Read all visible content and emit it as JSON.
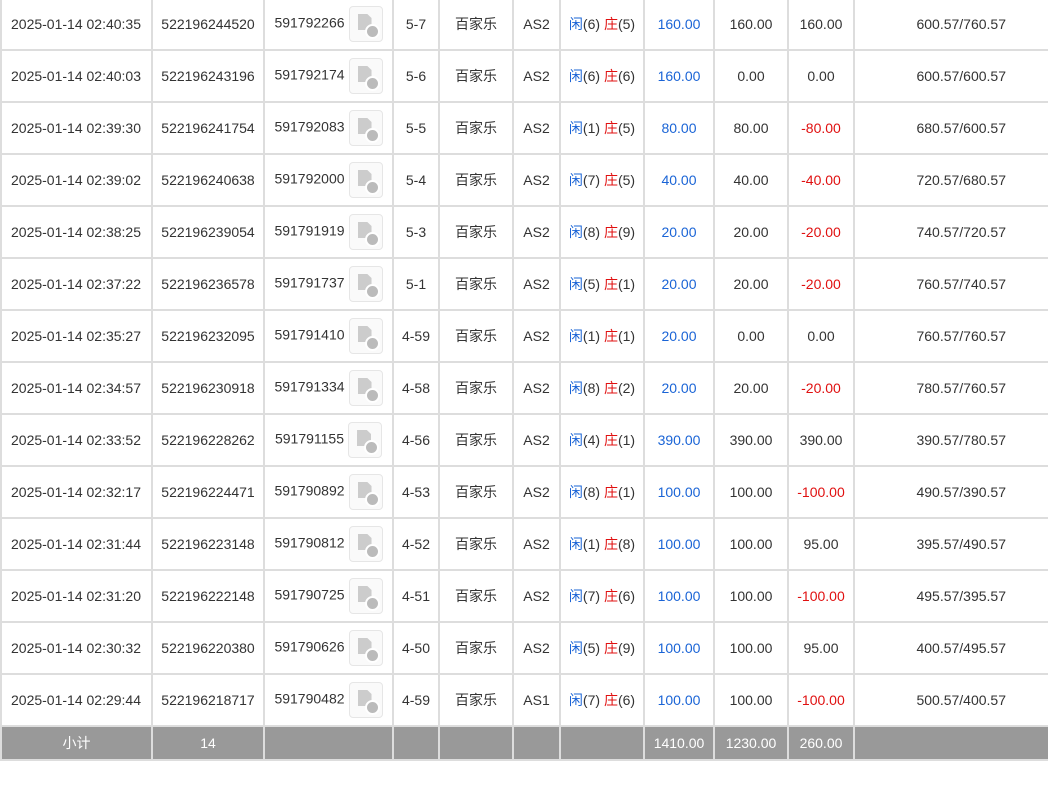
{
  "labels": {
    "player": "闲",
    "banker": "庄"
  },
  "rows": [
    {
      "time": "2025-01-14 02:40:35",
      "id": "522196244520",
      "game": "591792266",
      "round": "5-7",
      "type": "百家乐",
      "table": "AS2",
      "p": "6",
      "b": "5",
      "bet": "160.00",
      "valid": "160.00",
      "win": "160.00",
      "balance": "600.57/760.57"
    },
    {
      "time": "2025-01-14 02:40:03",
      "id": "522196243196",
      "game": "591792174",
      "round": "5-6",
      "type": "百家乐",
      "table": "AS2",
      "p": "6",
      "b": "6",
      "bet": "160.00",
      "valid": "0.00",
      "win": "0.00",
      "balance": "600.57/600.57"
    },
    {
      "time": "2025-01-14 02:39:30",
      "id": "522196241754",
      "game": "591792083",
      "round": "5-5",
      "type": "百家乐",
      "table": "AS2",
      "p": "1",
      "b": "5",
      "bet": "80.00",
      "valid": "80.00",
      "win": "-80.00",
      "balance": "680.57/600.57"
    },
    {
      "time": "2025-01-14 02:39:02",
      "id": "522196240638",
      "game": "591792000",
      "round": "5-4",
      "type": "百家乐",
      "table": "AS2",
      "p": "7",
      "b": "5",
      "bet": "40.00",
      "valid": "40.00",
      "win": "-40.00",
      "balance": "720.57/680.57"
    },
    {
      "time": "2025-01-14 02:38:25",
      "id": "522196239054",
      "game": "591791919",
      "round": "5-3",
      "type": "百家乐",
      "table": "AS2",
      "p": "8",
      "b": "9",
      "bet": "20.00",
      "valid": "20.00",
      "win": "-20.00",
      "balance": "740.57/720.57"
    },
    {
      "time": "2025-01-14 02:37:22",
      "id": "522196236578",
      "game": "591791737",
      "round": "5-1",
      "type": "百家乐",
      "table": "AS2",
      "p": "5",
      "b": "1",
      "bet": "20.00",
      "valid": "20.00",
      "win": "-20.00",
      "balance": "760.57/740.57"
    },
    {
      "time": "2025-01-14 02:35:27",
      "id": "522196232095",
      "game": "591791410",
      "round": "4-59",
      "type": "百家乐",
      "table": "AS2",
      "p": "1",
      "b": "1",
      "bet": "20.00",
      "valid": "0.00",
      "win": "0.00",
      "balance": "760.57/760.57"
    },
    {
      "time": "2025-01-14 02:34:57",
      "id": "522196230918",
      "game": "591791334",
      "round": "4-58",
      "type": "百家乐",
      "table": "AS2",
      "p": "8",
      "b": "2",
      "bet": "20.00",
      "valid": "20.00",
      "win": "-20.00",
      "balance": "780.57/760.57"
    },
    {
      "time": "2025-01-14 02:33:52",
      "id": "522196228262",
      "game": "591791155",
      "round": "4-56",
      "type": "百家乐",
      "table": "AS2",
      "p": "4",
      "b": "1",
      "bet": "390.00",
      "valid": "390.00",
      "win": "390.00",
      "balance": "390.57/780.57"
    },
    {
      "time": "2025-01-14 02:32:17",
      "id": "522196224471",
      "game": "591790892",
      "round": "4-53",
      "type": "百家乐",
      "table": "AS2",
      "p": "8",
      "b": "1",
      "bet": "100.00",
      "valid": "100.00",
      "win": "-100.00",
      "balance": "490.57/390.57"
    },
    {
      "time": "2025-01-14 02:31:44",
      "id": "522196223148",
      "game": "591790812",
      "round": "4-52",
      "type": "百家乐",
      "table": "AS2",
      "p": "1",
      "b": "8",
      "bet": "100.00",
      "valid": "100.00",
      "win": "95.00",
      "balance": "395.57/490.57"
    },
    {
      "time": "2025-01-14 02:31:20",
      "id": "522196222148",
      "game": "591790725",
      "round": "4-51",
      "type": "百家乐",
      "table": "AS2",
      "p": "7",
      "b": "6",
      "bet": "100.00",
      "valid": "100.00",
      "win": "-100.00",
      "balance": "495.57/395.57"
    },
    {
      "time": "2025-01-14 02:30:32",
      "id": "522196220380",
      "game": "591790626",
      "round": "4-50",
      "type": "百家乐",
      "table": "AS2",
      "p": "5",
      "b": "9",
      "bet": "100.00",
      "valid": "100.00",
      "win": "95.00",
      "balance": "400.57/495.57"
    },
    {
      "time": "2025-01-14 02:29:44",
      "id": "522196218717",
      "game": "591790482",
      "round": "4-59",
      "type": "百家乐",
      "table": "AS1",
      "p": "7",
      "b": "6",
      "bet": "100.00",
      "valid": "100.00",
      "win": "-100.00",
      "balance": "500.57/400.57"
    }
  ],
  "subtotal": {
    "label": "小计",
    "count": "14",
    "bet": "1410.00",
    "valid": "1230.00",
    "win": "260.00"
  },
  "colors": {
    "player": "#1a64d6",
    "banker": "#e01010",
    "negative": "#e01010",
    "subtotal_bg": "#999999"
  },
  "icons": {
    "replay": "video-replay-icon"
  }
}
